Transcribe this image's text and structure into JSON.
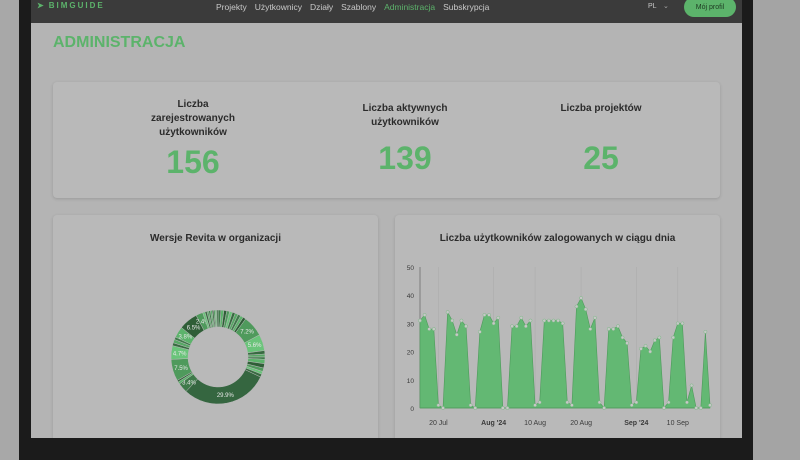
{
  "nav": {
    "logo": "BIMGUIDE",
    "items": [
      {
        "label": "Projekty"
      },
      {
        "label": "Użytkownicy"
      },
      {
        "label": "Działy"
      },
      {
        "label": "Szablony"
      },
      {
        "label": "Administracja",
        "active": true
      },
      {
        "label": "Subskrypcja"
      }
    ],
    "lang": "PL",
    "profile": "Mój profil"
  },
  "page": {
    "title": "ADMINISTRACJA"
  },
  "stats": [
    {
      "label": "Liczba zarejestrowanych użytkowników",
      "value": "156"
    },
    {
      "label": "Liczba aktywnych użytkowników",
      "value": "139"
    },
    {
      "label": "Liczba projektów",
      "value": "25"
    }
  ],
  "colors": {
    "accent": "#5cb36b",
    "nav_bg": "#3b3b3b"
  },
  "chart_data": [
    {
      "type": "pie",
      "variant": "donut",
      "title": "Wersje Revita w organizacji",
      "values": [
        1,
        1,
        1,
        1,
        1,
        1,
        1,
        1,
        1,
        1,
        7.2,
        5.6,
        1.2,
        1.0,
        0.8,
        1.5,
        1.5,
        1.2,
        1.0,
        1.0,
        29.9,
        3.4,
        0.8,
        0.6,
        7.5,
        4.7,
        1.0,
        1.2,
        0.9,
        3.8,
        6.5,
        2.4,
        0.8,
        0.7,
        0.6,
        0.6,
        0.6,
        0.5,
        0.5,
        0.5,
        0.5
      ],
      "labels_shown": [
        "7.2%",
        "5.6%",
        "29.9%",
        "3.4%",
        "7.5%",
        "4.7%",
        "3.8%",
        "6.5%",
        "2.4%"
      ]
    },
    {
      "type": "area",
      "title": "Liczba użytkowników zalogowanych w ciągu dnia",
      "ylim": [
        0,
        50
      ],
      "yticks": [
        0,
        10,
        20,
        30,
        40,
        50
      ],
      "xticks": [
        {
          "date": "2024-07-20",
          "label": "20 Jul"
        },
        {
          "date": "2024-08-01",
          "label": "Aug '24",
          "bold": true
        },
        {
          "date": "2024-08-10",
          "label": "10 Aug"
        },
        {
          "date": "2024-08-20",
          "label": "20 Aug"
        },
        {
          "date": "2024-09-01",
          "label": "Sep '24",
          "bold": true
        },
        {
          "date": "2024-09-10",
          "label": "10 Sep"
        }
      ],
      "x_range": [
        "2024-07-16",
        "2024-09-17"
      ],
      "values": [
        31,
        33,
        28,
        28,
        1,
        0,
        34,
        31,
        26,
        31,
        29,
        1,
        0,
        27,
        33,
        33,
        30,
        32,
        0,
        0,
        29,
        29,
        32,
        29,
        31,
        1,
        2,
        31,
        31,
        31,
        31,
        30,
        2,
        1,
        36,
        39,
        35,
        28,
        32,
        2,
        0,
        28,
        28,
        29,
        25,
        23,
        1,
        2,
        21,
        22,
        20,
        24,
        25,
        0,
        2,
        25,
        30,
        30,
        2,
        8,
        0,
        0,
        27,
        1
      ]
    }
  ]
}
